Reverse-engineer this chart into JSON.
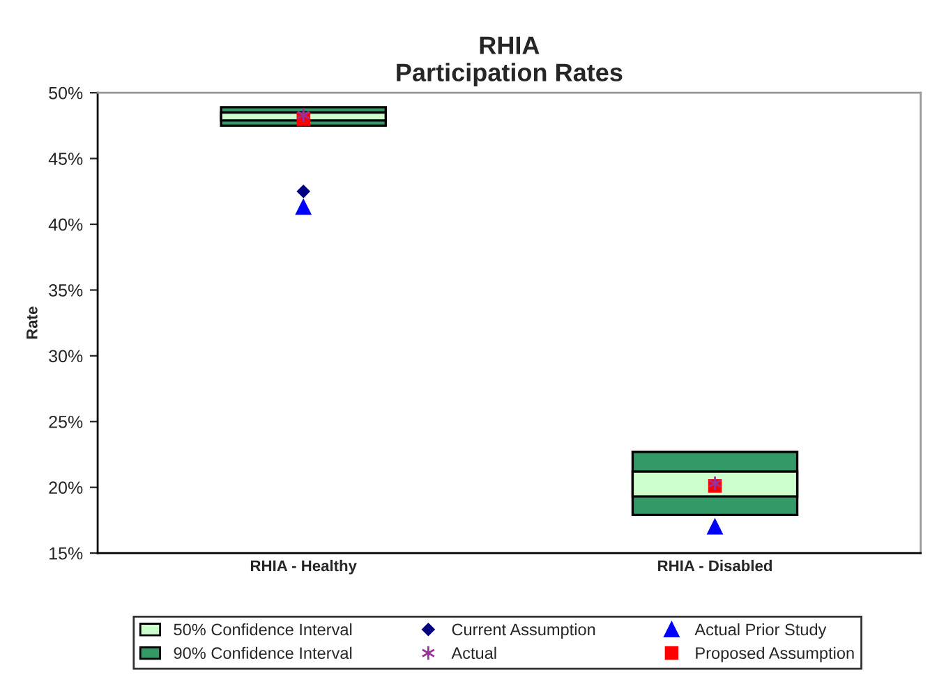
{
  "chart_data": {
    "type": "bar",
    "title": "RHIA\nParticipation Rates",
    "ylabel": "Rate",
    "categories": [
      "RHIA - Healthy",
      "RHIA - Disabled"
    ],
    "series": [
      {
        "name": "50% Confidence Interval",
        "color": "#ccffcc",
        "base": [
          47.9,
          19.3
        ],
        "values": [
          0.6,
          1.9
        ]
      },
      {
        "name": "90% Confidence Interval",
        "color": "#339966",
        "base": [
          47.5,
          17.9
        ],
        "values": [
          1.4,
          4.8
        ]
      },
      {
        "name": "Current Assumption",
        "type": "scatter",
        "marker": "diamond",
        "color": "#000080",
        "x": [
          "RHIA - Healthy",
          "RHIA - Disabled"
        ],
        "values": [
          42.5,
          null
        ]
      },
      {
        "name": "Actual",
        "type": "scatter",
        "marker": "cross",
        "color": "#993399",
        "x": [
          "RHIA - Healthy",
          "RHIA - Disabled"
        ],
        "values": [
          48.3,
          20.3
        ]
      },
      {
        "name": "Actual Prior Study",
        "type": "scatter",
        "marker": "triangle",
        "color": "#0000ff",
        "x": [
          "RHIA - Healthy",
          "RHIA - Disabled"
        ],
        "values": [
          41.3,
          17.0
        ]
      },
      {
        "name": "Proposed Assumption",
        "type": "scatter",
        "marker": "square",
        "color": "#ff0000",
        "x": [
          "RHIA - Healthy",
          "RHIA - Disabled"
        ],
        "values": [
          48.0,
          20.1
        ]
      }
    ],
    "ylim": [
      15,
      50
    ],
    "yticks": [
      {
        "value": 15,
        "label": "15%"
      },
      {
        "value": 20,
        "label": "20%"
      },
      {
        "value": 25,
        "label": "25%"
      },
      {
        "value": 30,
        "label": "30%"
      },
      {
        "value": 35,
        "label": "35%"
      },
      {
        "value": 40,
        "label": "40%"
      },
      {
        "value": 45,
        "label": "45%"
      },
      {
        "value": 50,
        "label": "50%"
      }
    ],
    "grid": false,
    "legend": "bottom"
  }
}
